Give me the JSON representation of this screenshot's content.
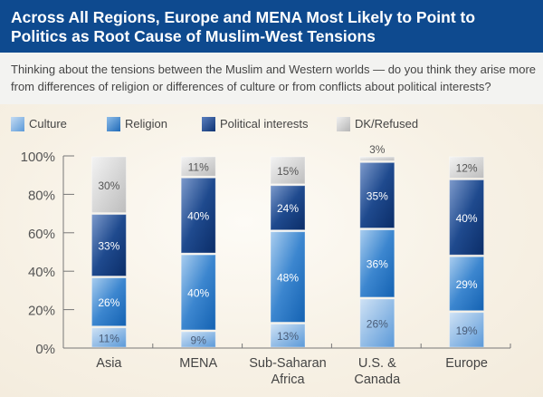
{
  "header": {
    "title": "Across All Regions, Europe and MENA Most Likely to Point to Politics as Root Cause of Muslim-West Tensions",
    "subtitle": "Thinking about the tensions between the Muslim and Western worlds — do you think they arise more from differences of religion or differences of culture or from conflicts about political interests?"
  },
  "colors": {
    "title_bg": "#0e4a8f",
    "culture": "#6fa8e0",
    "religion": "#2e7cc8",
    "political": "#173f85",
    "dk": "#c9c9c9"
  },
  "chart_data": {
    "type": "bar",
    "stacked": true,
    "title": "Across All Regions, Europe and MENA Most Likely to Point to Politics as Root Cause of Muslim-West Tensions",
    "categories": [
      "Asia",
      "MENA",
      "Sub-Saharan Africa",
      "U.S. & Canada",
      "Europe"
    ],
    "category_lines": [
      [
        "Asia"
      ],
      [
        "MENA"
      ],
      [
        "Sub-Saharan",
        "Africa"
      ],
      [
        "U.S. &",
        "Canada"
      ],
      [
        "Europe"
      ]
    ],
    "series": [
      {
        "name": "Culture",
        "key": "culture",
        "values": [
          11,
          9,
          13,
          26,
          19
        ],
        "labels": [
          "11%",
          "9%",
          "13%",
          "26%",
          "19%"
        ]
      },
      {
        "name": "Religion",
        "key": "religion",
        "values": [
          26,
          40,
          48,
          36,
          29
        ],
        "labels": [
          "26%",
          "40%",
          "48%",
          "36%",
          "29%"
        ]
      },
      {
        "name": "Political interests",
        "key": "political",
        "values": [
          33,
          40,
          24,
          35,
          40
        ],
        "labels": [
          "33%",
          "40%",
          "24%",
          "35%",
          "40%"
        ]
      },
      {
        "name": "DK/Refused",
        "key": "dk",
        "values": [
          30,
          11,
          15,
          3,
          12
        ],
        "labels": [
          "30%",
          "11%",
          "15%",
          "3%",
          "12%"
        ]
      }
    ],
    "yticks": [
      0,
      20,
      40,
      60,
      80,
      100
    ],
    "ytick_labels": [
      "0%",
      "20%",
      "40%",
      "60%",
      "80%",
      "100%"
    ],
    "ylim": [
      0,
      100
    ],
    "xlabel": "",
    "ylabel": "",
    "grid": false,
    "legend_position": "top-left"
  }
}
